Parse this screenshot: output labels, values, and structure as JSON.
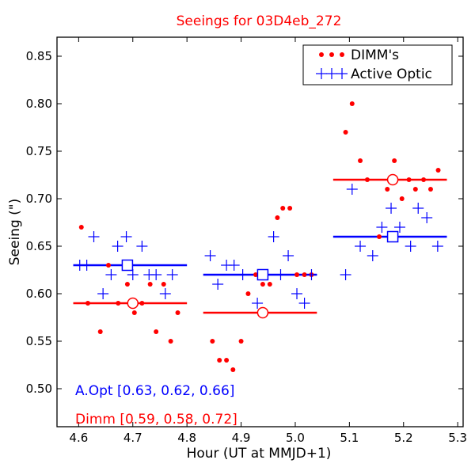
{
  "chart_data": {
    "type": "scatter",
    "title": "Seeings for 03D4eb_272",
    "title_color": "#ff0000",
    "xlabel": "Hour (UT at MMJD+1)",
    "ylabel": "Seeing (\")",
    "xlim": [
      4.56,
      5.31
    ],
    "ylim": [
      0.46,
      0.87
    ],
    "xticks": [
      "4.6",
      "4.7",
      "4.8",
      "4.9",
      "5.0",
      "5.1",
      "5.2",
      "5.3"
    ],
    "yticks": [
      "0.50",
      "0.55",
      "0.60",
      "0.65",
      "0.70",
      "0.75",
      "0.80",
      "0.85"
    ],
    "grid": false,
    "legend_position": "top-right",
    "series": [
      {
        "name": "DIMM's",
        "color": "#ff0000",
        "marker": "dot",
        "points": [
          [
            4.605,
            0.67
          ],
          [
            4.617,
            0.59
          ],
          [
            4.64,
            0.56
          ],
          [
            4.655,
            0.63
          ],
          [
            4.673,
            0.59
          ],
          [
            4.69,
            0.61
          ],
          [
            4.703,
            0.58
          ],
          [
            4.717,
            0.59
          ],
          [
            4.732,
            0.61
          ],
          [
            4.743,
            0.56
          ],
          [
            4.757,
            0.61
          ],
          [
            4.77,
            0.55
          ],
          [
            4.783,
            0.58
          ],
          [
            4.847,
            0.55
          ],
          [
            4.86,
            0.53
          ],
          [
            4.873,
            0.53
          ],
          [
            4.885,
            0.52
          ],
          [
            4.9,
            0.55
          ],
          [
            4.913,
            0.6
          ],
          [
            4.927,
            0.62
          ],
          [
            4.94,
            0.61
          ],
          [
            4.953,
            0.61
          ],
          [
            4.967,
            0.68
          ],
          [
            4.977,
            0.69
          ],
          [
            4.99,
            0.69
          ],
          [
            5.003,
            0.62
          ],
          [
            5.017,
            0.62
          ],
          [
            5.03,
            0.62
          ],
          [
            5.093,
            0.77
          ],
          [
            5.105,
            0.8
          ],
          [
            5.12,
            0.74
          ],
          [
            5.133,
            0.72
          ],
          [
            5.155,
            0.66
          ],
          [
            5.17,
            0.71
          ],
          [
            5.183,
            0.74
          ],
          [
            5.197,
            0.7
          ],
          [
            5.21,
            0.72
          ],
          [
            5.222,
            0.71
          ],
          [
            5.237,
            0.72
          ],
          [
            5.25,
            0.71
          ],
          [
            5.264,
            0.73
          ]
        ]
      },
      {
        "name": "Active Optic",
        "color": "#0000ff",
        "marker": "plus",
        "points": [
          [
            4.602,
            0.63
          ],
          [
            4.615,
            0.63
          ],
          [
            4.628,
            0.66
          ],
          [
            4.645,
            0.6
          ],
          [
            4.66,
            0.62
          ],
          [
            4.672,
            0.65
          ],
          [
            4.688,
            0.66
          ],
          [
            4.7,
            0.62
          ],
          [
            4.717,
            0.65
          ],
          [
            4.73,
            0.62
          ],
          [
            4.743,
            0.62
          ],
          [
            4.76,
            0.6
          ],
          [
            4.773,
            0.62
          ],
          [
            4.843,
            0.64
          ],
          [
            4.857,
            0.61
          ],
          [
            4.873,
            0.63
          ],
          [
            4.887,
            0.63
          ],
          [
            4.903,
            0.62
          ],
          [
            4.93,
            0.59
          ],
          [
            4.943,
            0.62
          ],
          [
            4.96,
            0.66
          ],
          [
            4.973,
            0.62
          ],
          [
            4.987,
            0.64
          ],
          [
            5.003,
            0.6
          ],
          [
            5.017,
            0.59
          ],
          [
            5.03,
            0.62
          ],
          [
            5.093,
            0.62
          ],
          [
            5.105,
            0.71
          ],
          [
            5.12,
            0.65
          ],
          [
            5.143,
            0.64
          ],
          [
            5.16,
            0.67
          ],
          [
            5.177,
            0.69
          ],
          [
            5.193,
            0.67
          ],
          [
            5.213,
            0.65
          ],
          [
            5.227,
            0.69
          ],
          [
            5.243,
            0.68
          ],
          [
            5.263,
            0.65
          ]
        ]
      }
    ],
    "segments": [
      {
        "series": "DIMM's",
        "x0": 4.59,
        "x1": 4.8,
        "y": 0.59,
        "mx": 4.7
      },
      {
        "series": "DIMM's",
        "x0": 4.83,
        "x1": 5.04,
        "y": 0.58,
        "mx": 4.94
      },
      {
        "series": "DIMM's",
        "x0": 5.07,
        "x1": 5.28,
        "y": 0.72,
        "mx": 5.18
      },
      {
        "series": "Active Optic",
        "x0": 4.59,
        "x1": 4.8,
        "y": 0.63,
        "mx": 4.69
      },
      {
        "series": "Active Optic",
        "x0": 4.83,
        "x1": 5.04,
        "y": 0.62,
        "mx": 4.94
      },
      {
        "series": "Active Optic",
        "x0": 5.07,
        "x1": 5.28,
        "y": 0.66,
        "mx": 5.18
      }
    ],
    "annotations": [
      {
        "text": "A.Opt [0.63, 0.62, 0.66]",
        "color": "#0000ff"
      },
      {
        "text": "Dimm [0.59, 0.58, 0.72]",
        "color": "#ff0000"
      }
    ]
  }
}
